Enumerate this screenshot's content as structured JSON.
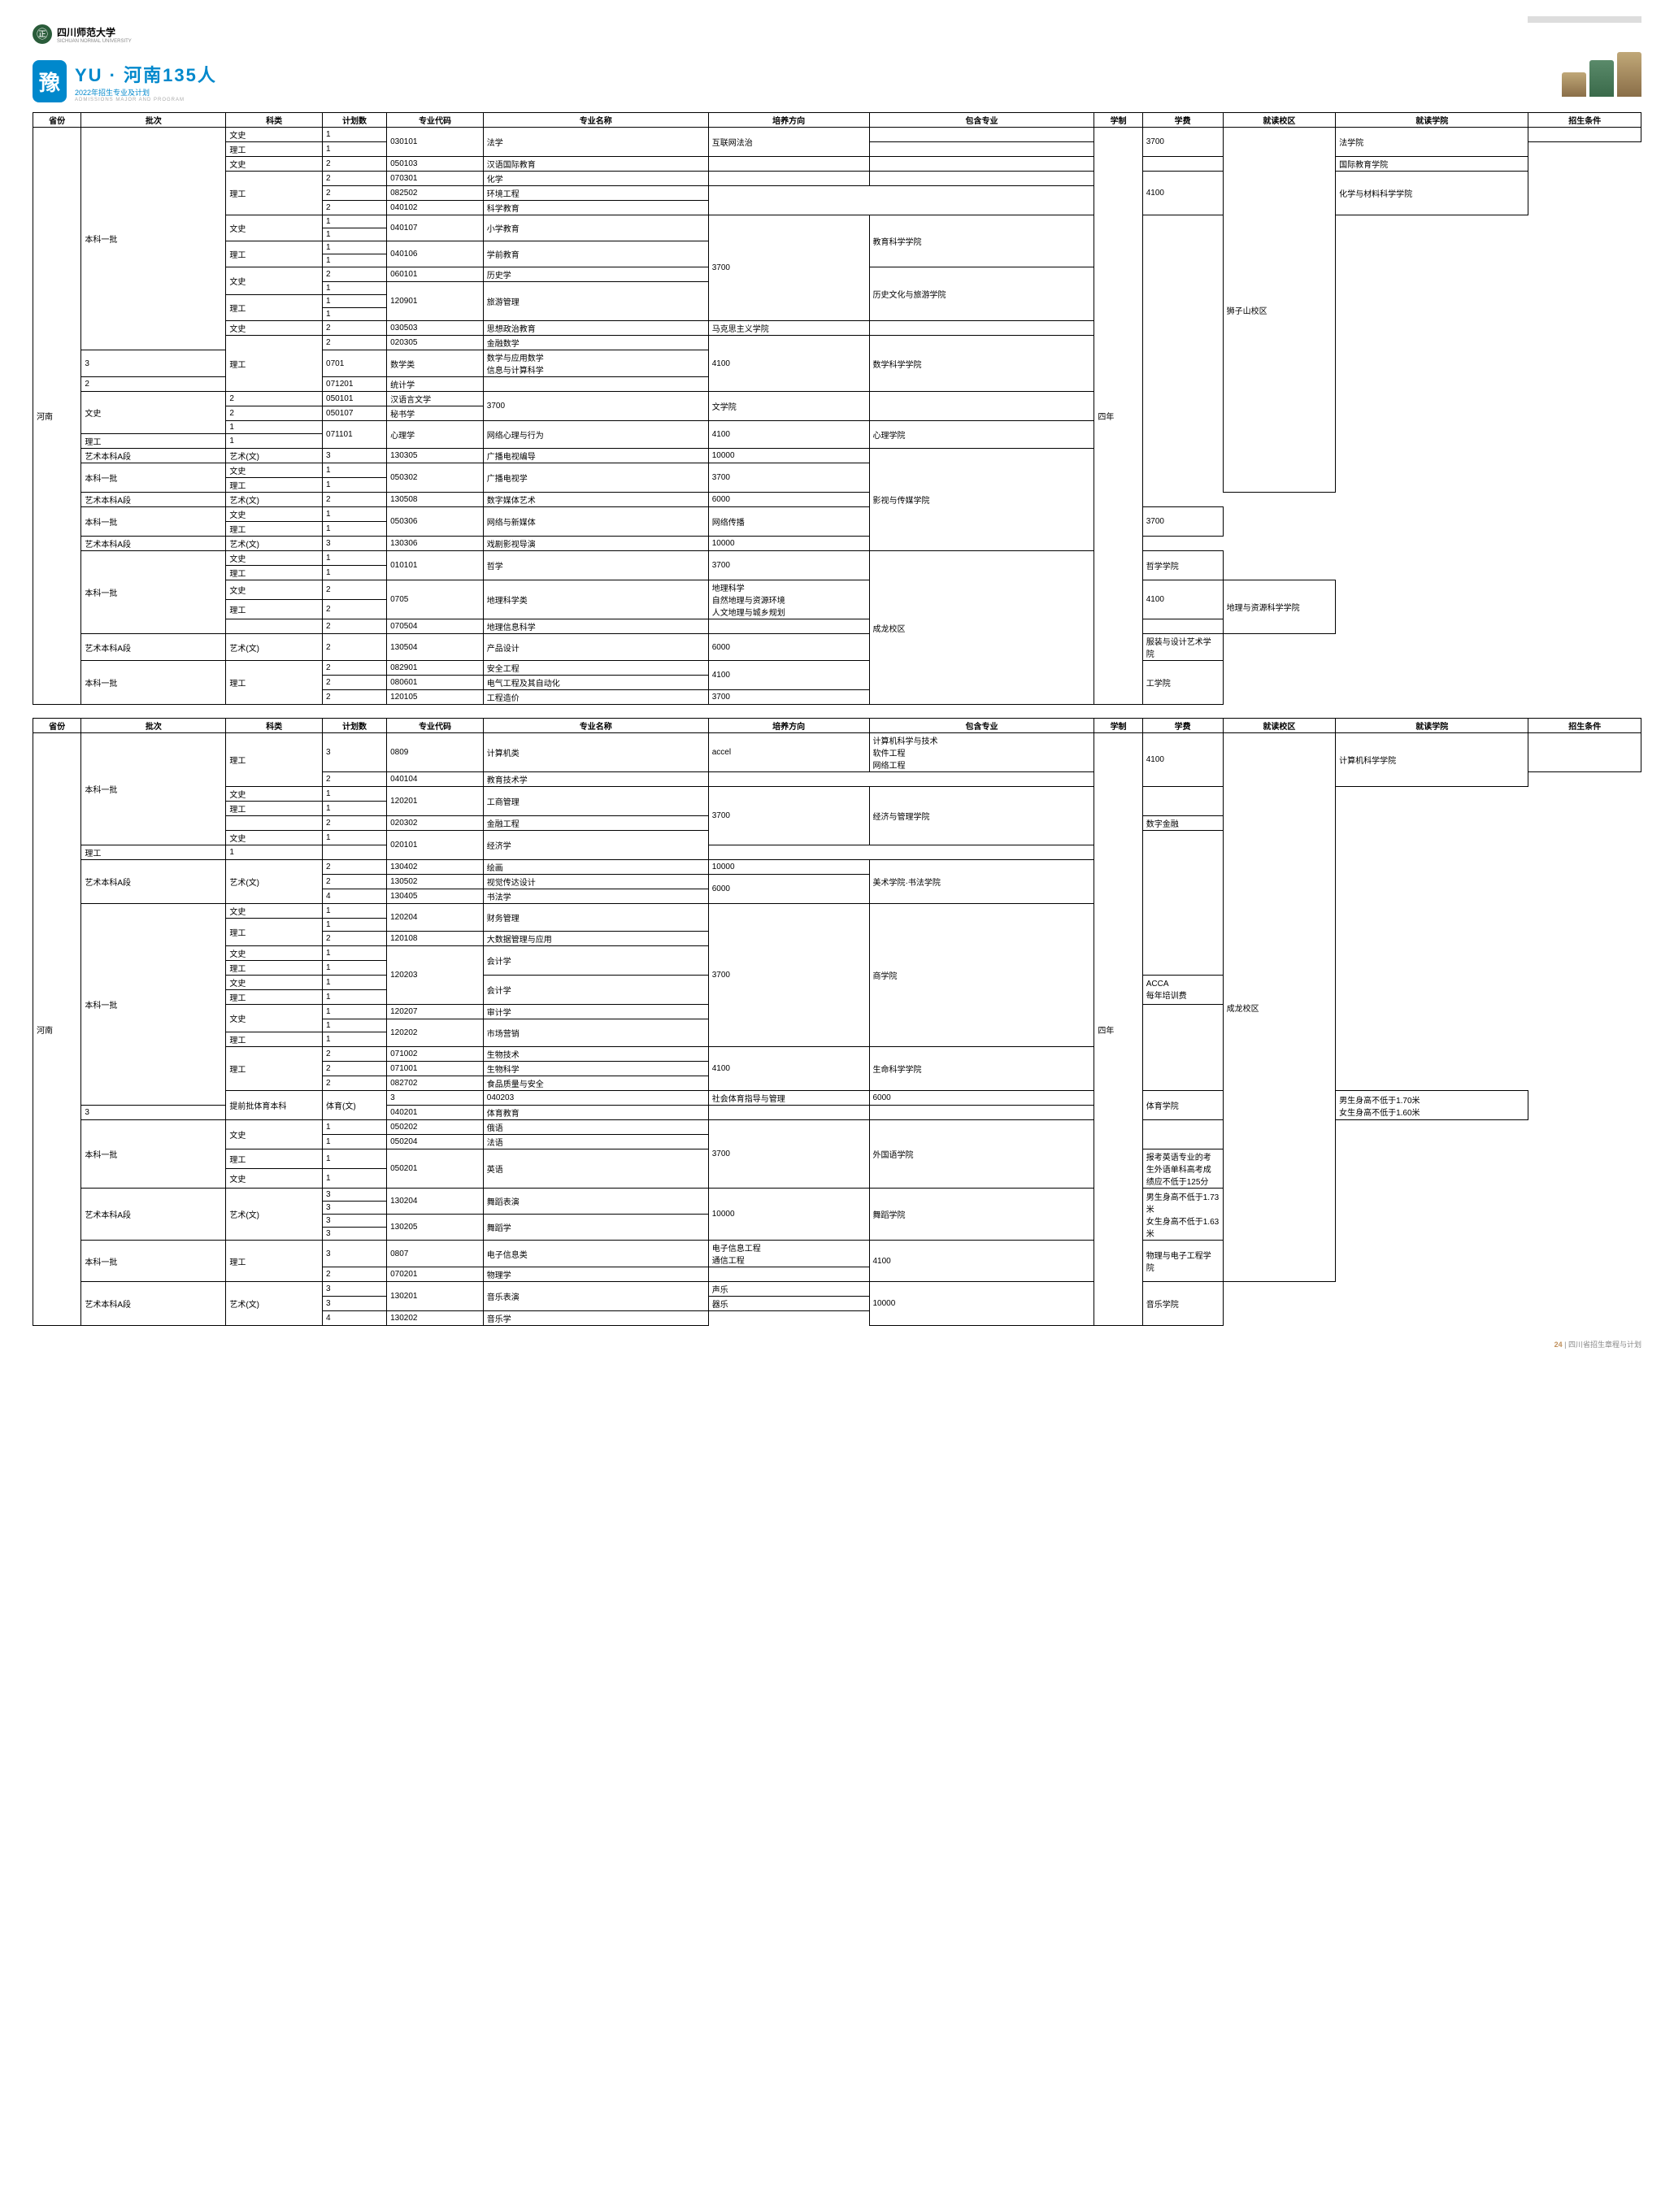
{
  "university": "四川师范大学",
  "badge_char": "豫",
  "title": "YU · 河南135人",
  "subtitle": "2022年招生专业及计划",
  "subtitle_en": "ADMISSIONS MAJOR AND PROGRAM",
  "headers": [
    "省份",
    "批次",
    "科类",
    "计划数",
    "专业代码",
    "专业名称",
    "培养方向",
    "包含专业",
    "学制",
    "学费",
    "就读校区",
    "就读学院",
    "招生条件"
  ],
  "province": "河南",
  "duration": "四年",
  "table1_rows": [
    {
      "batch": "本科一批",
      "batch_span": 16,
      "kelei": "文史",
      "count": "1",
      "code": "030101",
      "code_span": 2,
      "name": "法学",
      "name_span": 2,
      "direction": "互联网法治",
      "direction_span": 2,
      "include": "",
      "fee": "3700",
      "fee_span": 2,
      "campus": "狮子山校区",
      "campus_span": 25,
      "college": "法学院",
      "college_span": 2,
      "cond": ""
    },
    {
      "kelei": "理工",
      "count": "1"
    },
    {
      "kelei": "文史",
      "count": "2",
      "code": "050103",
      "name": "汉语国际教育",
      "direction": "",
      "include": "",
      "fee": "",
      "college": "国际教育学院"
    },
    {
      "kelei": "理工",
      "kelei_span": 3,
      "count": "2",
      "code": "070301",
      "name": "化学",
      "direction": "",
      "include": "",
      "fee": "4100",
      "fee_span": 3,
      "college": "化学与材料科学学院",
      "college_span": 3
    },
    {
      "count": "2",
      "code": "082502",
      "name": "环境工程"
    },
    {
      "count": "2",
      "code": "040102",
      "name": "科学教育"
    },
    {
      "kelei": "文史",
      "kelei_span": 2,
      "count": "1",
      "code": "040107",
      "code_span": 2,
      "name": "小学教育",
      "name_span": 2,
      "fee": "3700",
      "fee_span": 8,
      "college": "教育科学学院",
      "college_span": 4
    },
    {
      "count": "1"
    },
    {
      "kelei": "理工",
      "kelei_span": 2,
      "count": "1",
      "code": "040106",
      "code_span": 2,
      "name": "学前教育",
      "name_span": 2
    },
    {
      "count": "1"
    },
    {
      "kelei": "文史",
      "kelei_span": 2,
      "count": "2",
      "code": "060101",
      "name": "历史学",
      "college": "历史文化与旅游学院",
      "college_span": 4
    },
    {
      "count": "1",
      "code": "120901",
      "code_span": 3,
      "name": "旅游管理",
      "name_span": 3
    },
    {
      "kelei": "理工",
      "kelei_span": 2,
      "count": "1"
    },
    {
      "count": "1"
    },
    {
      "kelei": "文史",
      "count": "2",
      "code": "030503",
      "name": "思想政治教育",
      "college": "马克思主义学院"
    },
    {
      "kelei": "理工",
      "kelei_span": 3,
      "count": "2",
      "code": "020305",
      "name": "金融数学",
      "fee": "4100",
      "fee_span": 3,
      "college": "数学科学学院",
      "college_span": 3
    },
    {
      "count": "3",
      "code": "0701",
      "name": "数学类",
      "include": "数学与应用数学\n信息与计算科学"
    },
    {
      "count": "2",
      "code": "071201",
      "name": "统计学"
    },
    {
      "kelei": "文史",
      "kelei_span": 3,
      "count": "2",
      "code": "050101",
      "name": "汉语言文学",
      "fee": "3700",
      "fee_span": 2,
      "college": "文学院",
      "college_span": 2
    },
    {
      "count": "2",
      "code": "050107",
      "name": "秘书学"
    },
    {
      "count": "1",
      "code": "071101",
      "code_span": 2,
      "name": "心理学",
      "name_span": 2,
      "direction": "网络心理与行为",
      "direction_span": 2,
      "fee": "4100",
      "fee_span": 2,
      "college": "心理学院",
      "college_span": 2
    },
    {
      "kelei": "理工",
      "count": "1"
    },
    {
      "batch": "艺术本科A段",
      "kelei": "艺术(文)",
      "count": "3",
      "code": "130305",
      "name": "广播电视编导",
      "fee": "10000",
      "college": "影视与传媒学院",
      "college_span": 7
    },
    {
      "batch": "本科一批",
      "batch_span": 2,
      "kelei": "文史",
      "count": "1",
      "code": "050302",
      "code_span": 2,
      "name": "广播电视学",
      "name_span": 2,
      "fee": "3700",
      "fee_span": 2
    },
    {
      "kelei": "理工",
      "count": "1"
    },
    {
      "batch": "艺术本科A段",
      "kelei": "艺术(文)",
      "count": "2",
      "code": "130508",
      "name": "数字媒体艺术",
      "fee": "6000"
    },
    {
      "batch": "本科一批",
      "batch_span": 2,
      "kelei": "文史",
      "count": "1",
      "code": "050306",
      "code_span": 2,
      "name": "网络与新媒体",
      "name_span": 2,
      "direction": "网络传播",
      "direction_span": 2,
      "fee": "3700",
      "fee_span": 2
    },
    {
      "kelei": "理工",
      "count": "1"
    },
    {
      "batch": "艺术本科A段",
      "kelei": "艺术(文)",
      "count": "3",
      "code": "130306",
      "name": "戏剧影视导演",
      "fee": "10000"
    },
    {
      "batch": "本科一批",
      "batch_span": 5,
      "kelei": "文史",
      "count": "1",
      "code": "010101",
      "code_span": 2,
      "name": "哲学",
      "name_span": 2,
      "fee": "3700",
      "fee_span": 2,
      "campus": "成龙校区",
      "campus_span": 9,
      "college": "哲学学院",
      "college_span": 2
    },
    {
      "kelei": "理工",
      "count": "1"
    },
    {
      "kelei": "文史",
      "count": "2",
      "code": "0705",
      "code_span": 2,
      "name": "地理科学类",
      "name_span": 2,
      "include": "地理科学\n自然地理与资源环境\n人文地理与城乡规划",
      "include_span": 2,
      "fee": "4100",
      "fee_span": 2,
      "college": "地理与资源科学学院",
      "college_span": 3
    },
    {
      "kelei": "理工",
      "count": "2"
    },
    {
      "kelei": "",
      "count": "2",
      "code": "070504",
      "name": "地理信息科学",
      "fee": ""
    },
    {
      "batch": "艺术本科A段",
      "kelei": "艺术(文)",
      "count": "2",
      "code": "130504",
      "name": "产品设计",
      "fee": "6000",
      "college": "服装与设计艺术学院"
    },
    {
      "batch": "本科一批",
      "batch_span": 3,
      "kelei": "理工",
      "kelei_span": 3,
      "count": "2",
      "code": "082901",
      "name": "安全工程",
      "fee": "4100",
      "fee_span": 2,
      "college": "工学院",
      "college_span": 3
    },
    {
      "count": "2",
      "code": "080601",
      "name": "电气工程及其自动化"
    },
    {
      "count": "2",
      "code": "120105",
      "name": "工程造价",
      "fee": "3700"
    }
  ],
  "table2_rows": [
    {
      "batch": "本科一批",
      "batch_span": 6,
      "kelei": "理工",
      "kelei_span": 2,
      "count": "3",
      "code": "0809",
      "name": "计算机类",
      "direction": "accel",
      "include": "计算机科学与技术\n软件工程\n网络工程",
      "fee": "4100",
      "fee_span": 2,
      "campus": "成龙校区",
      "campus_span": 35,
      "college": "计算机科学学院",
      "college_span": 2,
      "cond": ""
    },
    {
      "count": "2",
      "code": "040104",
      "name": "教育技术学"
    },
    {
      "kelei": "文史",
      "count": "1",
      "code": "120201",
      "code_span": 2,
      "name": "工商管理",
      "name_span": 2,
      "fee": "3700",
      "fee_span": 4,
      "college": "经济与管理学院",
      "college_span": 4
    },
    {
      "kelei": "理工",
      "count": "1"
    },
    {
      "kelei": "",
      "count": "2",
      "code": "020302",
      "name": "金融工程",
      "direction": "数字金融"
    },
    {
      "kelei": "文史",
      "count": "1",
      "code": "020101",
      "code_span": 2,
      "name": "经济学",
      "name_span": 2
    },
    {
      "kelei": "理工",
      "count": "1"
    },
    {
      "batch": "艺术本科A段",
      "batch_span": 3,
      "kelei": "艺术(文)",
      "kelei_span": 3,
      "count": "2",
      "code": "130402",
      "name": "绘画",
      "fee": "10000",
      "college": "美术学院·书法学院",
      "college_span": 3
    },
    {
      "count": "2",
      "code": "130502",
      "name": "视觉传达设计",
      "fee": "6000",
      "fee_span": 2
    },
    {
      "count": "4",
      "code": "130405",
      "name": "书法学"
    },
    {
      "batch": "本科一批",
      "batch_span": 14,
      "kelei": "文史",
      "count": "1",
      "code": "120204",
      "code_span": 2,
      "name": "财务管理",
      "name_span": 2,
      "fee": "3700",
      "fee_span": 10,
      "college": "商学院",
      "college_span": 10
    },
    {
      "kelei": "理工",
      "kelei_span": 2,
      "count": "1"
    },
    {
      "count": "2",
      "code": "120108",
      "name": "大数据管理与应用"
    },
    {
      "kelei": "文史",
      "count": "1",
      "code": "120203",
      "code_span": 4,
      "name": "会计学",
      "name_span": 2
    },
    {
      "kelei": "理工",
      "count": "1"
    },
    {
      "kelei": "文史",
      "count": "1",
      "name": "会计学",
      "name_span": 2,
      "direction": "ACCA\n每年培训费",
      "direction_span": 2
    },
    {
      "kelei": "理工",
      "count": "1"
    },
    {
      "kelei": "文史",
      "kelei_span": 2,
      "count": "1",
      "code": "120207",
      "name": "审计学"
    },
    {
      "count": "1",
      "code": "120202",
      "code_span": 2,
      "name": "市场营销",
      "name_span": 2
    },
    {
      "kelei": "理工",
      "count": "1"
    },
    {
      "kelei": "理工",
      "kelei_span": 3,
      "count": "2",
      "code": "071002",
      "name": "生物技术",
      "fee": "4100",
      "fee_span": 3,
      "college": "生命科学学院",
      "college_span": 3
    },
    {
      "count": "2",
      "code": "071001",
      "name": "生物科学"
    },
    {
      "count": "2",
      "code": "082702",
      "name": "食品质量与安全"
    },
    {
      "batch": "提前批体育本科",
      "batch_span": 2,
      "kelei": "体育(文)",
      "kelei_span": 2,
      "count": "3",
      "code": "040203",
      "name": "社会体育指导与管理",
      "fee": "6000",
      "college": "体育学院",
      "college_span": 2,
      "cond": "男生身高不低于1.70米\n女生身高不低于1.60米",
      "cond_span": 2
    },
    {
      "count": "3",
      "code": "040201",
      "name": "体育教育",
      "fee": ""
    },
    {
      "batch": "本科一批",
      "batch_span": 4,
      "kelei": "文史",
      "kelei_span": 2,
      "count": "1",
      "code": "050202",
      "name": "俄语",
      "fee": "3700",
      "fee_span": 4,
      "college": "外国语学院",
      "college_span": 4,
      "cond": "",
      "cond_span": 2
    },
    {
      "count": "1",
      "code": "050204",
      "name": "法语"
    },
    {
      "kelei": "理工",
      "count": "1",
      "code": "050201",
      "code_span": 2,
      "name": "英语",
      "name_span": 2,
      "cond": "报考英语专业的考生外语单科高考成绩应不低于125分",
      "cond_span": 2
    },
    {
      "kelei": "文史",
      "count": "1"
    },
    {
      "batch": "艺术本科A段",
      "batch_span": 4,
      "kelei": "艺术(文)",
      "kelei_span": 4,
      "count": "3",
      "code": "130204",
      "code_span": 2,
      "name": "舞蹈表演",
      "name_span": 2,
      "fee": "10000",
      "fee_span": 4,
      "college": "舞蹈学院",
      "college_span": 4,
      "cond": "男生身高不低于1.73米\n女生身高不低于1.63米",
      "cond_span": 4
    },
    {
      "count": "3"
    },
    {
      "count": "3",
      "code": "130205",
      "code_span": 2,
      "name": "舞蹈学",
      "name_span": 2
    },
    {
      "count": "3"
    },
    {
      "batch": "本科一批",
      "batch_span": 2,
      "kelei": "理工",
      "kelei_span": 2,
      "count": "3",
      "code": "0807",
      "name": "电子信息类",
      "include": "电子信息工程\n通信工程",
      "fee": "4100",
      "fee_span": 2,
      "college": "物理与电子工程学院",
      "college_span": 2
    },
    {
      "count": "2",
      "code": "070201",
      "name": "物理学"
    },
    {
      "batch": "艺术本科A段",
      "batch_span": 3,
      "kelei": "艺术(文)",
      "kelei_span": 3,
      "count": "3",
      "code": "130201",
      "code_span": 2,
      "name": "音乐表演",
      "name_span": 2,
      "direction": "声乐",
      "fee": "10000",
      "fee_span": 3,
      "college": "音乐学院",
      "college_span": 3
    },
    {
      "count": "3",
      "direction": "器乐"
    },
    {
      "count": "4",
      "code": "130202",
      "name": "音乐学"
    }
  ],
  "footer_page": "24",
  "footer_text": "四川省招生章程与计划"
}
